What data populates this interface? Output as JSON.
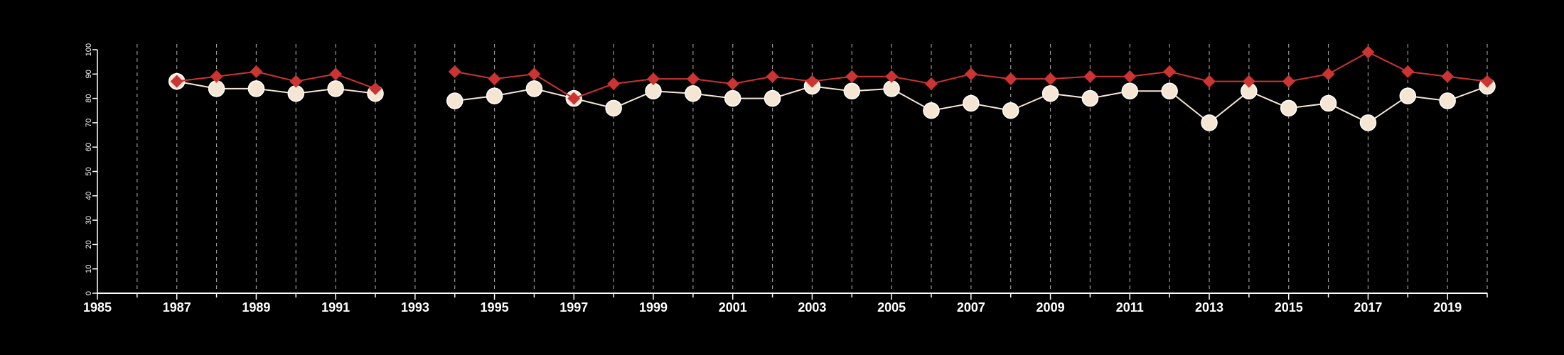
{
  "chart_data": {
    "type": "line",
    "title": "",
    "xlabel": "",
    "ylabel": "",
    "xlim": [
      1985,
      2020
    ],
    "ylim": [
      0,
      100
    ],
    "x_ticks": [
      1985,
      1987,
      1989,
      1991,
      1993,
      1995,
      1997,
      1999,
      2001,
      2003,
      2005,
      2007,
      2009,
      2011,
      2013,
      2015,
      2017,
      2019
    ],
    "y_ticks": [
      0,
      10,
      20,
      30,
      40,
      50,
      60,
      70,
      80,
      90,
      100
    ],
    "x_tick_labels": [
      "1985",
      "1987",
      "1989",
      "1991",
      "1993",
      "1995",
      "1997",
      "1999",
      "2001",
      "2003",
      "2005",
      "2007",
      "2009",
      "2011",
      "2013",
      "2015",
      "2017",
      "2019"
    ],
    "y_tick_labels": [
      "0",
      "10",
      "20",
      "30",
      "40",
      "50",
      "60",
      "70",
      "80",
      "90",
      "100"
    ],
    "grid": "vertical dashed lines at each year",
    "legend": "none",
    "series": [
      {
        "marker": "diamond",
        "color": "#cc3333",
        "x": [
          1987,
          1988,
          1989,
          1990,
          1991,
          1992,
          1994,
          1995,
          1996,
          1997,
          1998,
          1999,
          2000,
          2001,
          2002,
          2003,
          2004,
          2005,
          2006,
          2007,
          2008,
          2009,
          2010,
          2011,
          2012,
          2013,
          2014,
          2015,
          2016,
          2017,
          2018,
          2019,
          2020
        ],
        "values": [
          87,
          89,
          91,
          87,
          90,
          84,
          91,
          88,
          90,
          80,
          86,
          88,
          88,
          86,
          89,
          87,
          89,
          89,
          86,
          90,
          88,
          88,
          89,
          89,
          91,
          87,
          87,
          87,
          90,
          99,
          91,
          89,
          87
        ]
      },
      {
        "marker": "circle",
        "color": "#f5e6d3",
        "x": [
          1987,
          1988,
          1989,
          1990,
          1991,
          1992,
          1994,
          1995,
          1996,
          1997,
          1998,
          1999,
          2000,
          2001,
          2002,
          2003,
          2004,
          2005,
          2006,
          2007,
          2008,
          2009,
          2010,
          2011,
          2012,
          2013,
          2014,
          2015,
          2016,
          2017,
          2018,
          2019,
          2020
        ],
        "values": [
          87,
          84,
          84,
          82,
          84,
          82,
          79,
          81,
          84,
          80,
          76,
          83,
          82,
          80,
          80,
          85,
          83,
          84,
          75,
          78,
          75,
          82,
          80,
          83,
          83,
          70,
          83,
          76,
          78,
          70,
          81,
          79,
          85
        ]
      }
    ]
  }
}
